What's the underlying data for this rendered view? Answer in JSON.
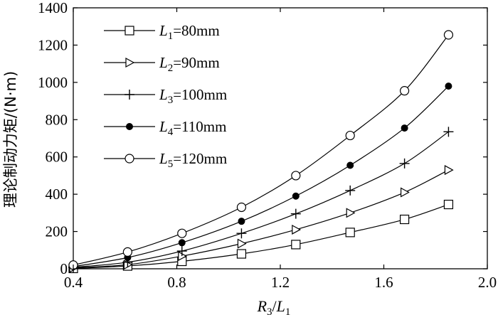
{
  "chart_data": {
    "type": "line",
    "title": "",
    "xlabel": {
      "base": "R",
      "sub1": "3",
      "sep": "/",
      "base2": "L",
      "sub2": "1"
    },
    "ylabel": "理论制动力矩/(N·m)",
    "xlim": [
      0.4,
      2.0
    ],
    "ylim": [
      0,
      1400
    ],
    "xticks": [
      "0.4",
      "0.8",
      "1.2",
      "1.6",
      "2.0"
    ],
    "xtick_values": [
      0.4,
      0.8,
      1.2,
      1.6,
      2.0
    ],
    "yticks": [
      "0",
      "200",
      "400",
      "600",
      "800",
      "1000",
      "1200",
      "1400"
    ],
    "ytick_values": [
      0,
      200,
      400,
      600,
      800,
      1000,
      1200,
      1400
    ],
    "x": [
      0.4,
      0.61,
      0.82,
      1.05,
      1.26,
      1.47,
      1.68,
      1.85
    ],
    "legend_position": "top-left",
    "series": [
      {
        "name": "L1=80mm",
        "label_base": "L",
        "label_sub": "1",
        "label_rest": "=80mm",
        "marker": "square",
        "values": [
          2,
          15,
          40,
          80,
          130,
          195,
          265,
          345
        ]
      },
      {
        "name": "L2=90mm",
        "label_base": "L",
        "label_sub": "2",
        "label_rest": "=90mm",
        "marker": "triangle-right",
        "values": [
          5,
          22,
          68,
          135,
          210,
          300,
          410,
          530
        ]
      },
      {
        "name": "L3=100mm",
        "label_base": "L",
        "label_sub": "3",
        "label_rest": "=100mm",
        "marker": "plus",
        "values": [
          8,
          35,
          95,
          190,
          295,
          420,
          565,
          735
        ]
      },
      {
        "name": "L4=110mm",
        "label_base": "L",
        "label_sub": "4",
        "label_rest": "=110mm",
        "marker": "filled-circle",
        "values": [
          12,
          60,
          140,
          255,
          390,
          555,
          755,
          980
        ]
      },
      {
        "name": "L5=120mm",
        "label_base": "L",
        "label_sub": "5",
        "label_rest": "=120mm",
        "marker": "open-circle",
        "values": [
          20,
          90,
          190,
          330,
          500,
          715,
          955,
          1255
        ]
      }
    ]
  }
}
